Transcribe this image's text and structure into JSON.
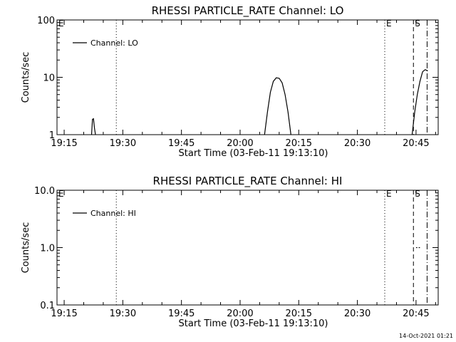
{
  "timestamp": "14-Oct-2021 01:21",
  "chart_data": [
    {
      "type": "line",
      "title": "RHESSI PARTICLE_RATE Channel: LO",
      "xlabel": "Start Time (03-Feb-11 19:13:10)",
      "ylabel": "Counts/sec",
      "yscale": "log",
      "x_ticks": [
        "19:15",
        "19:30",
        "19:45",
        "20:00",
        "20:15",
        "20:30",
        "20:45"
      ],
      "y_ticks": [
        "1",
        "10",
        "100"
      ],
      "y_tick_values": [
        1,
        10,
        100
      ],
      "ylim": [
        1,
        100
      ],
      "xlim": [
        "19:13:10",
        "20:50:40"
      ],
      "legend": {
        "label": "Channel: LO",
        "position": "top-left"
      },
      "series": [
        {
          "name": "Channel: LO",
          "segments": [
            {
              "x": [
                "19:22:00",
                "19:22:15",
                "19:22:30",
                "19:22:45",
                "19:23:00"
              ],
              "y": [
                1.0,
                1.85,
                1.9,
                1.3,
                1.0
              ]
            },
            {
              "x": [
                "20:06:15",
                "20:07:00",
                "20:07:45",
                "20:08:30",
                "20:09:15",
                "20:10:00",
                "20:10:45",
                "20:11:30",
                "20:12:15",
                "20:13:00"
              ],
              "y": [
                1.0,
                2.5,
                5.5,
                8.5,
                9.8,
                9.6,
                8.0,
                5.0,
                2.5,
                1.0
              ]
            },
            {
              "x": [
                "20:44:00",
                "20:44:40",
                "20:45:20",
                "20:46:00",
                "20:46:40",
                "20:47:20",
                "20:48:00"
              ],
              "y": [
                1.0,
                2.5,
                5.0,
                8.5,
                12.5,
                13.6,
                13.0
              ]
            }
          ]
        }
      ],
      "markers": [
        {
          "x": "19:13:10",
          "style": "none",
          "label": "E"
        },
        {
          "x": "19:28:20",
          "style": "dotted",
          "label": ""
        },
        {
          "x": "20:37:00",
          "style": "dotted",
          "label": "E"
        },
        {
          "x": "20:44:20",
          "style": "dashed",
          "label": "S"
        },
        {
          "x": "20:47:50",
          "style": "dash-dot",
          "label": ""
        }
      ]
    },
    {
      "type": "line",
      "title": "RHESSI PARTICLE_RATE Channel: HI",
      "xlabel": "Start Time (03-Feb-11 19:13:10)",
      "ylabel": "Counts/sec",
      "yscale": "log",
      "x_ticks": [
        "19:15",
        "19:30",
        "19:45",
        "20:00",
        "20:15",
        "20:30",
        "20:45"
      ],
      "y_ticks": [
        "0.1",
        "1.0",
        "10.0"
      ],
      "y_tick_values": [
        0.1,
        1.0,
        10.0
      ],
      "ylim": [
        0.1,
        10
      ],
      "xlim": [
        "19:13:10",
        "20:50:40"
      ],
      "legend": {
        "label": "Channel: HI",
        "position": "top-left"
      },
      "series": [
        {
          "name": "Channel: HI",
          "segments": [
            {
              "x": [
                "20:45:00",
                "20:45:20"
              ],
              "y": [
                1.0,
                1.0
              ]
            },
            {
              "x": [
                "20:45:40",
                "20:46:00"
              ],
              "y": [
                1.0,
                1.0
              ]
            }
          ]
        }
      ],
      "markers": [
        {
          "x": "19:13:10",
          "style": "none",
          "label": "E"
        },
        {
          "x": "19:28:20",
          "style": "dotted",
          "label": ""
        },
        {
          "x": "20:37:00",
          "style": "dotted",
          "label": "E"
        },
        {
          "x": "20:44:20",
          "style": "dashed",
          "label": "S"
        },
        {
          "x": "20:47:50",
          "style": "dash-dot",
          "label": ""
        }
      ]
    }
  ]
}
